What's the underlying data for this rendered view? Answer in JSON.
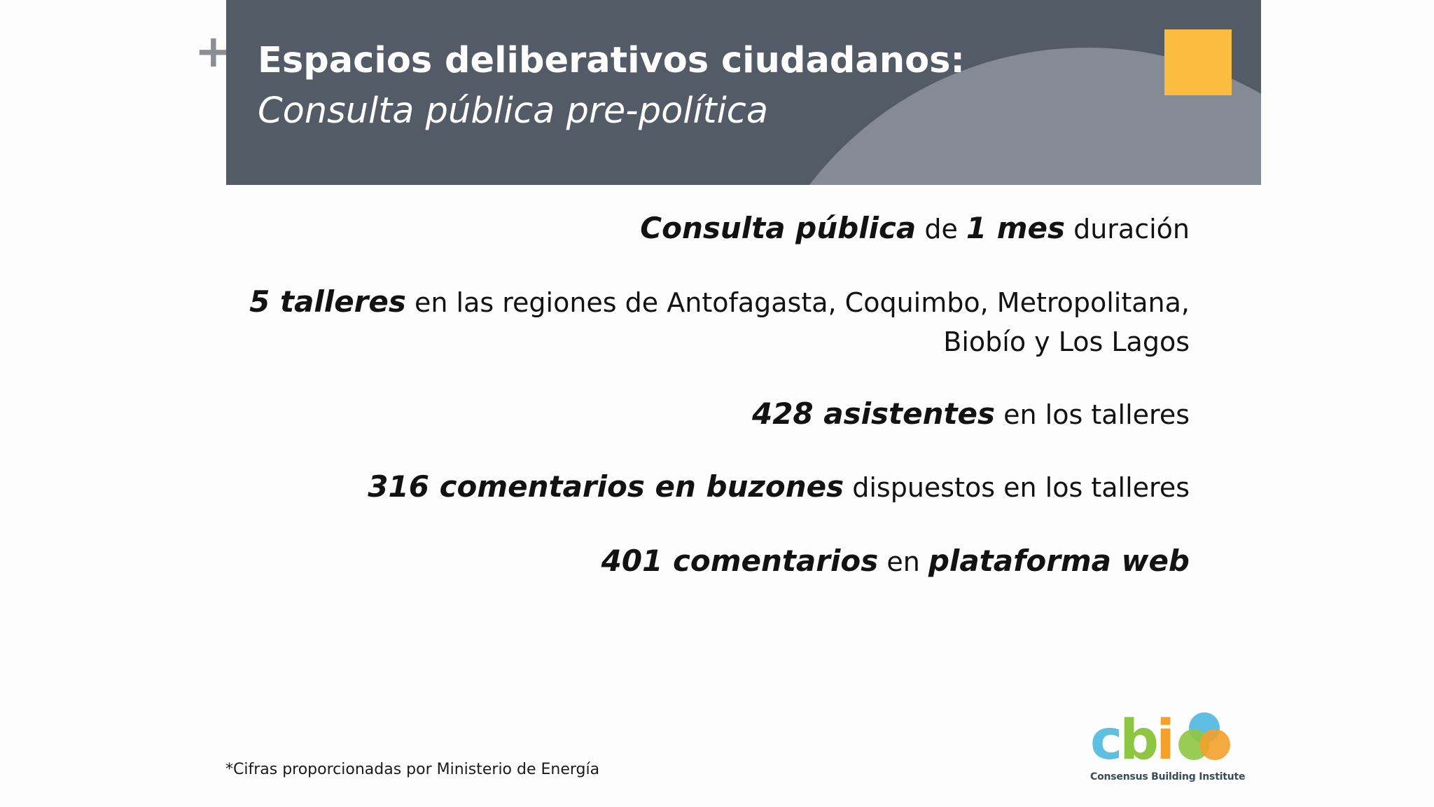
{
  "header": {
    "plus_glyph": "+",
    "title": "Espacios deliberativos ciudadanos:",
    "subtitle": "Consulta pública pre-política",
    "colors": {
      "band": "#525b66",
      "arc": "#858b94",
      "square": "#fbbc3f"
    }
  },
  "items": [
    {
      "parts": [
        {
          "text": "Consulta pública",
          "strong": true
        },
        {
          "text": " de ",
          "strong": false
        },
        {
          "text": "1 mes",
          "strong": true
        },
        {
          "text": " duración",
          "strong": false
        }
      ]
    },
    {
      "parts": [
        {
          "text": "5 talleres",
          "strong": true
        },
        {
          "text": " en las regiones de Antofagasta, Coquimbo, Metropolitana,",
          "strong": false
        }
      ],
      "continuation": "Biobío y Los Lagos"
    },
    {
      "parts": [
        {
          "text": "428 asistentes",
          "strong": true
        },
        {
          "text": " en los talleres",
          "strong": false
        }
      ]
    },
    {
      "parts": [
        {
          "text": "316 comentarios en buzones",
          "strong": true
        },
        {
          "text": " dispuestos en los talleres",
          "strong": false
        }
      ]
    },
    {
      "parts": [
        {
          "text": "401 comentarios",
          "strong": true
        },
        {
          "text": " en ",
          "strong": false
        },
        {
          "text": "plataforma web",
          "strong": true
        }
      ]
    }
  ],
  "footnote": "*Cifras proporcionadas por Ministerio de Energía",
  "logo": {
    "letters": [
      "c",
      "b",
      "i"
    ],
    "caption": "Consensus Building Institute",
    "colors": {
      "c": "#5fbfe0",
      "b": "#8ec643",
      "i": "#f3a12b"
    }
  }
}
